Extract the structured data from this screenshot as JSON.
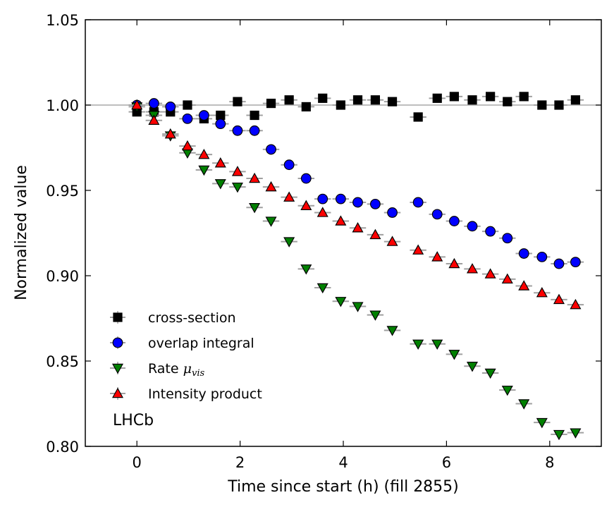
{
  "chart_data": {
    "type": "scatter",
    "title": "",
    "xlabel": "Time since start (h) (fill 2855)",
    "ylabel": "Normalized value",
    "xlim": [
      -1,
      9
    ],
    "ylim": [
      0.8,
      1.05
    ],
    "xticks": [
      0,
      2,
      4,
      6,
      8
    ],
    "xtick_labels": [
      "0",
      "2",
      "4",
      "6",
      "8"
    ],
    "yticks": [
      0.8,
      0.85,
      0.9,
      0.95,
      1.0,
      1.05
    ],
    "ytick_labels": [
      "0.80",
      "0.85",
      "0.90",
      "0.95",
      "1.00",
      "1.05"
    ],
    "reference_line": 1.0,
    "x_bin_half_width": 0.16,
    "x": [
      0.0,
      0.33,
      0.65,
      0.98,
      1.3,
      1.62,
      1.95,
      2.28,
      2.6,
      2.95,
      3.28,
      3.6,
      3.95,
      4.28,
      4.62,
      4.95,
      5.45,
      5.82,
      6.15,
      6.5,
      6.85,
      7.18,
      7.5,
      7.85,
      8.18,
      8.5
    ],
    "series": [
      {
        "name": "cross-section",
        "marker": "square",
        "color": "#000000",
        "values": [
          0.996,
          0.996,
          0.996,
          1.0,
          0.992,
          0.994,
          1.002,
          0.994,
          1.001,
          1.003,
          0.999,
          1.004,
          1.0,
          1.003,
          1.003,
          1.002,
          0.993,
          1.004,
          1.005,
          1.003,
          1.005,
          1.002,
          1.005,
          1.0,
          1.0,
          1.003
        ]
      },
      {
        "name": "overlap integral",
        "marker": "circle",
        "color": "#0000ff",
        "values": [
          1.0,
          1.001,
          0.999,
          0.992,
          0.994,
          0.989,
          0.985,
          0.985,
          0.974,
          0.965,
          0.957,
          0.945,
          0.945,
          0.943,
          0.942,
          0.937,
          0.943,
          0.936,
          0.932,
          0.929,
          0.926,
          0.922,
          0.913,
          0.911,
          0.907,
          0.908
        ]
      },
      {
        "name": "Rate μvis",
        "label_main": "Rate ",
        "label_math": "μ",
        "label_sub": "vis",
        "marker": "triangle-down",
        "color": "#008000",
        "values": [
          0.999,
          0.994,
          0.982,
          0.972,
          0.962,
          0.954,
          0.952,
          0.94,
          0.932,
          0.92,
          0.904,
          0.893,
          0.885,
          0.882,
          0.877,
          0.868,
          0.86,
          0.86,
          0.854,
          0.847,
          0.843,
          0.833,
          0.825,
          0.814,
          0.807,
          0.808
        ]
      },
      {
        "name": "Intensity product",
        "marker": "triangle-up",
        "color": "#ff0000",
        "values": [
          1.0,
          0.991,
          0.983,
          0.976,
          0.971,
          0.966,
          0.961,
          0.957,
          0.952,
          0.946,
          0.941,
          0.937,
          0.932,
          0.928,
          0.924,
          0.92,
          0.915,
          0.911,
          0.907,
          0.904,
          0.901,
          0.898,
          0.894,
          0.89,
          0.886,
          0.883
        ]
      }
    ],
    "legend_position": "bottom-left",
    "annotation": "LHCb",
    "annotation_position": "bottom-left"
  }
}
